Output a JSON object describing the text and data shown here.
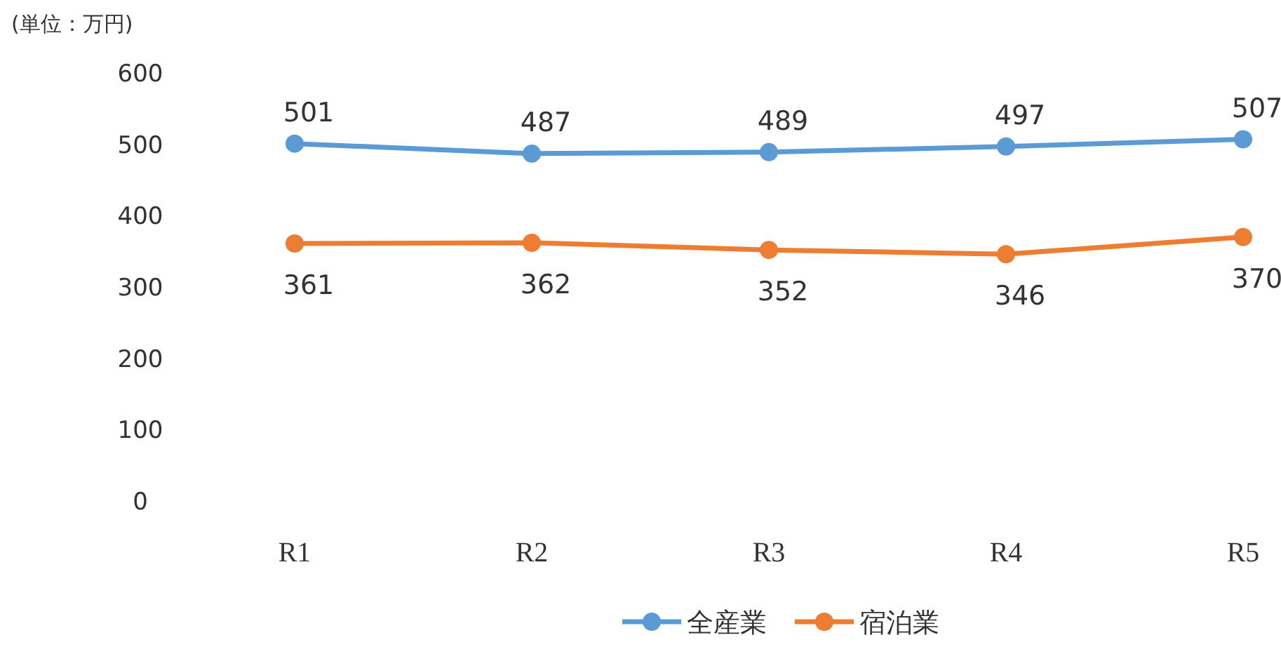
{
  "chart_data": {
    "type": "line",
    "ylabel": "(単位：万円)",
    "categories": [
      "R1",
      "R2",
      "R3",
      "R4",
      "R5"
    ],
    "series": [
      {
        "name": "全産業",
        "color": "#5b9bd5",
        "values": [
          501,
          487,
          489,
          497,
          507
        ]
      },
      {
        "name": "宿泊業",
        "color": "#ed7d31",
        "values": [
          361,
          362,
          352,
          346,
          370
        ]
      }
    ],
    "ylim": [
      0,
      600
    ],
    "yticks": [
      0,
      100,
      200,
      300,
      400,
      500,
      600
    ],
    "data_labels": true,
    "legend": "bottom",
    "marker": "circle",
    "line_style": "solid"
  }
}
